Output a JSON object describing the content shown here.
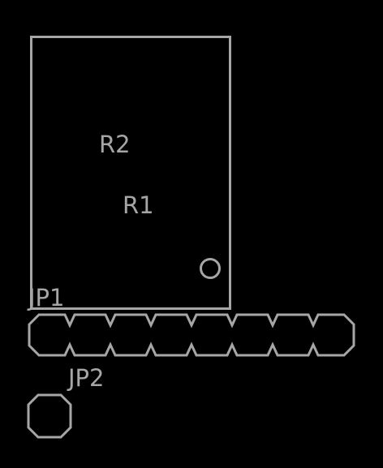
{
  "colors": {
    "background": "#000000",
    "silkscreen": "#a6a6a6"
  },
  "labels": {
    "r2": "R2",
    "r1": "R1",
    "jp1": "JP1",
    "jp2": "JP2"
  },
  "jp1": {
    "pin_count": 8
  },
  "jp2": {
    "pin_count": 1
  }
}
